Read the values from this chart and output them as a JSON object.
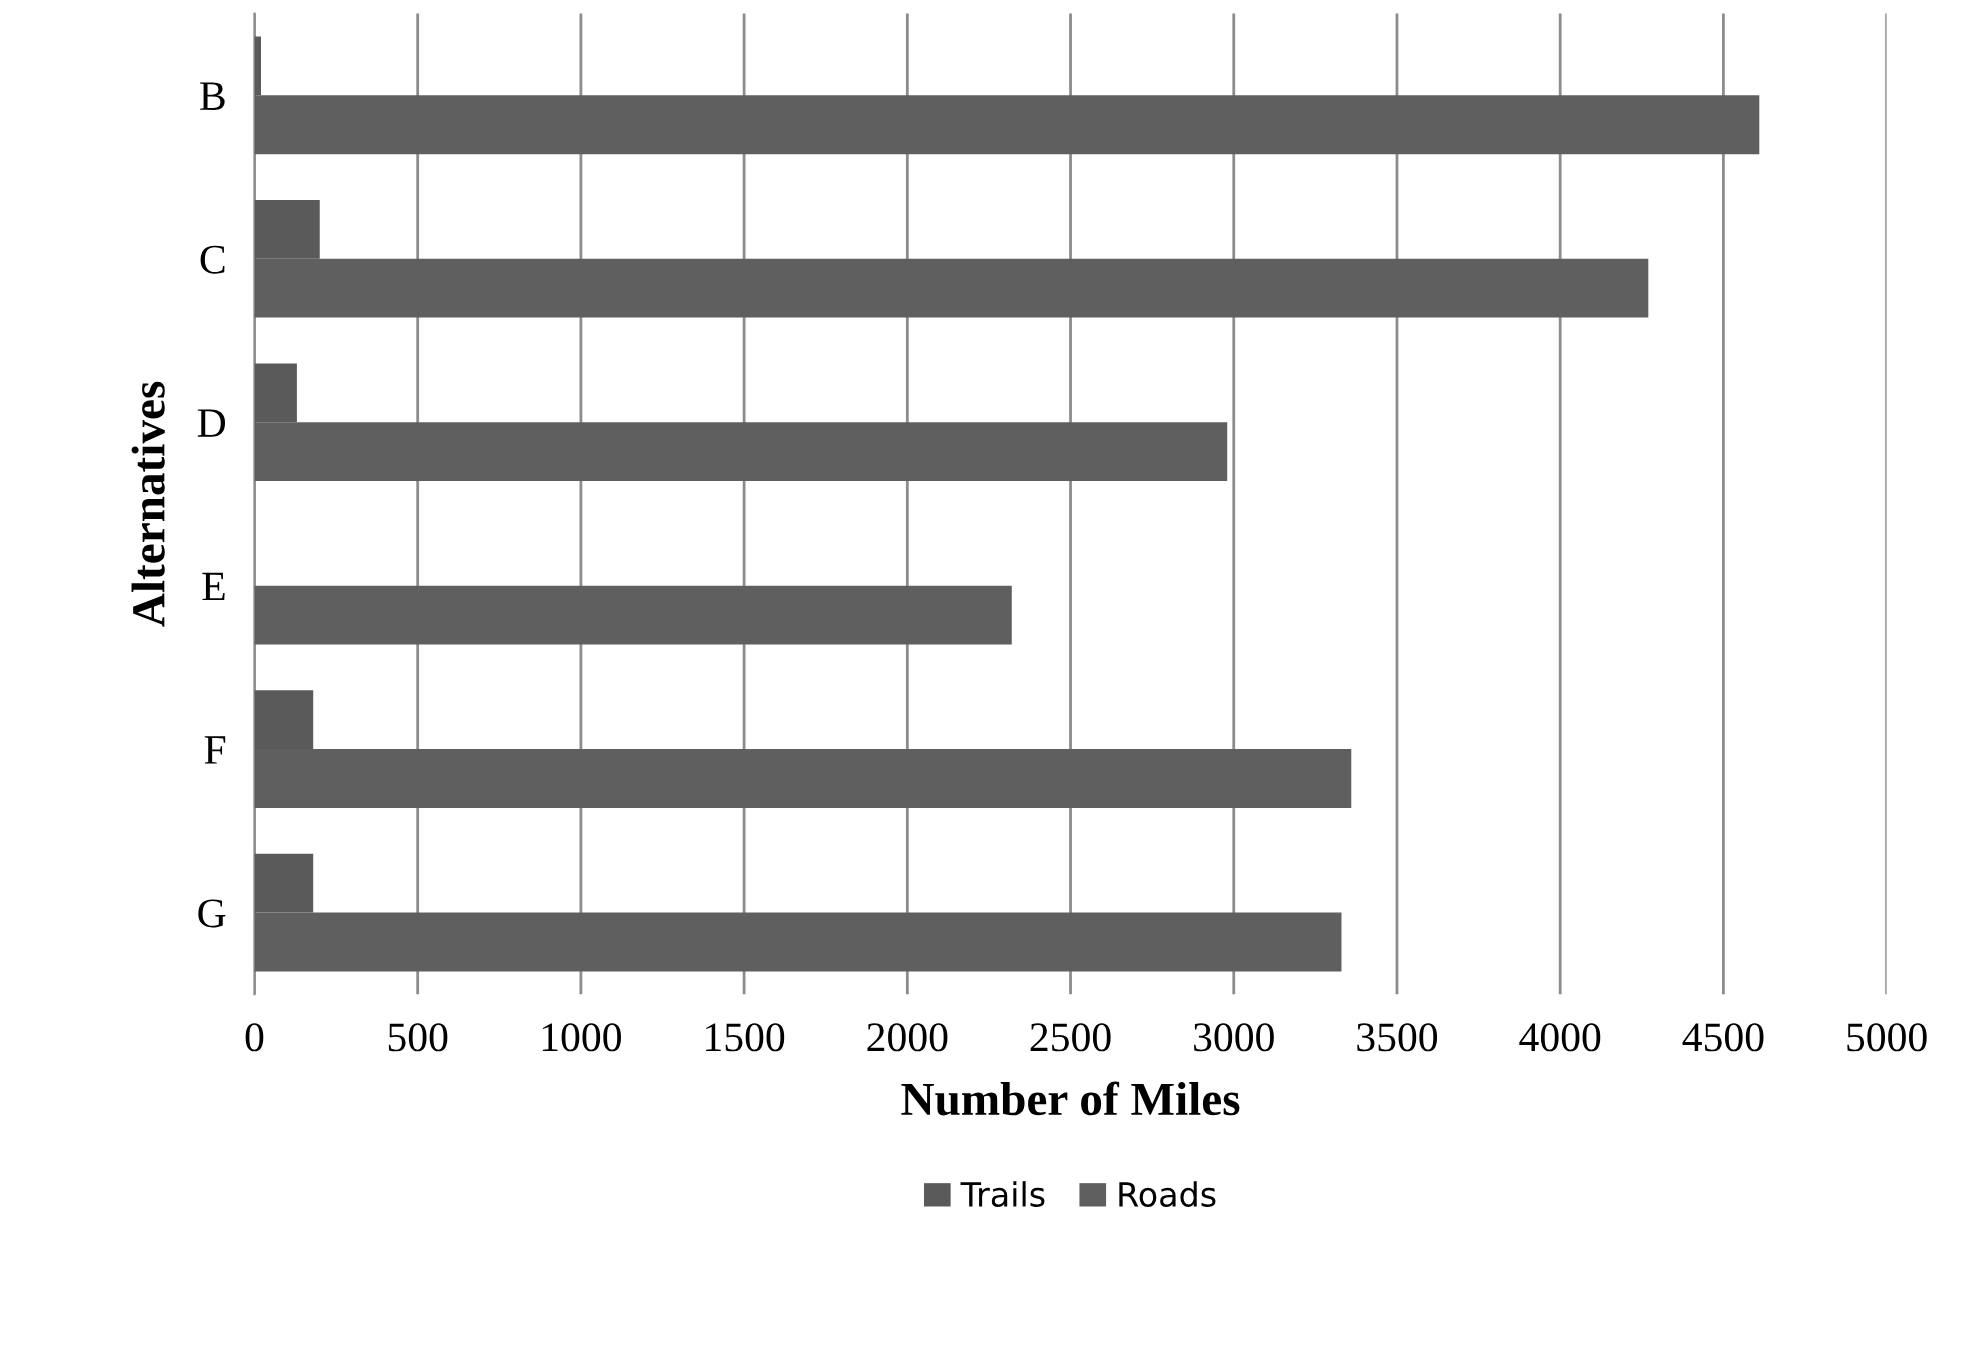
{
  "chart_data": {
    "type": "bar",
    "orientation": "horizontal",
    "xlabel": "Number of Miles",
    "ylabel": "Alternatives",
    "categories": [
      "B",
      "C",
      "D",
      "E",
      "F",
      "G"
    ],
    "series": [
      {
        "name": "Trails",
        "color": "#5a5a5a",
        "values": [
          20,
          200,
          130,
          0,
          180,
          180
        ]
      },
      {
        "name": "Roads",
        "color": "#5f5f5f",
        "values": [
          4610,
          4270,
          2980,
          2320,
          3360,
          3330
        ]
      }
    ],
    "xlim": [
      0,
      5000
    ],
    "xticks": [
      0,
      500,
      1000,
      1500,
      2000,
      2500,
      3000,
      3500,
      4000,
      4500,
      5000
    ],
    "grid": "x",
    "legend": "bottom"
  }
}
